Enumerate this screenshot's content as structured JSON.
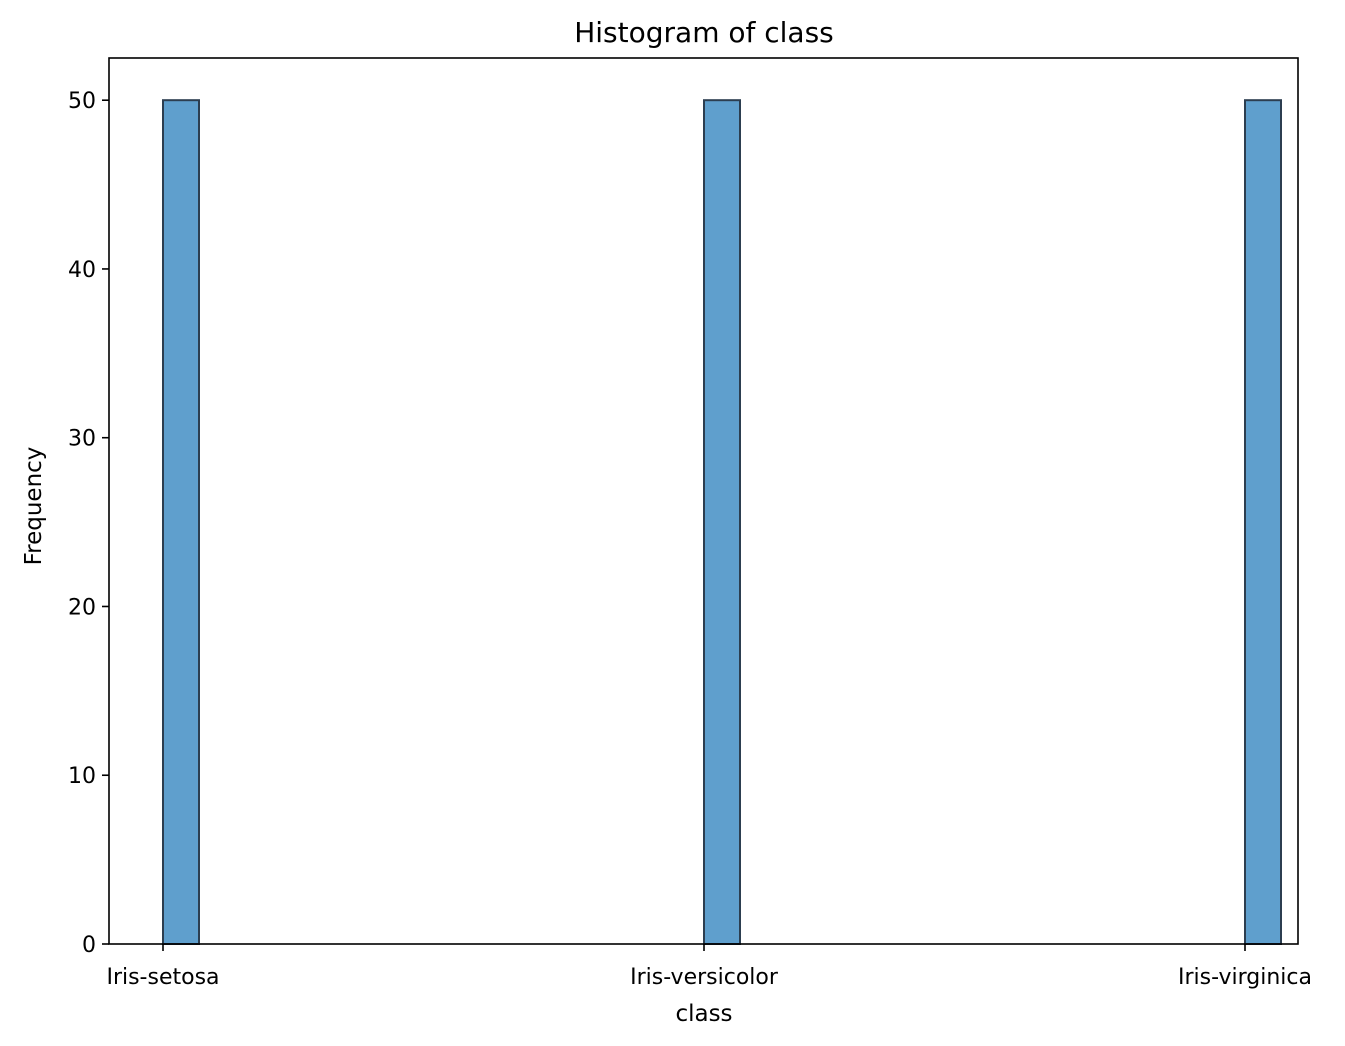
{
  "chart_data": {
    "type": "bar",
    "title": "Histogram of class",
    "xlabel": "class",
    "ylabel": "Frequency",
    "categories": [
      "Iris-setosa",
      "Iris-versicolor",
      "Iris-virginica"
    ],
    "values": [
      50,
      50,
      50
    ],
    "ylim": [
      0,
      52.5
    ],
    "yticks": [
      0,
      10,
      20,
      30,
      40,
      50
    ],
    "grid": false,
    "legend": "none",
    "bar_color": "#5f9fcd",
    "bar_edge_color": "#2c3e50"
  }
}
